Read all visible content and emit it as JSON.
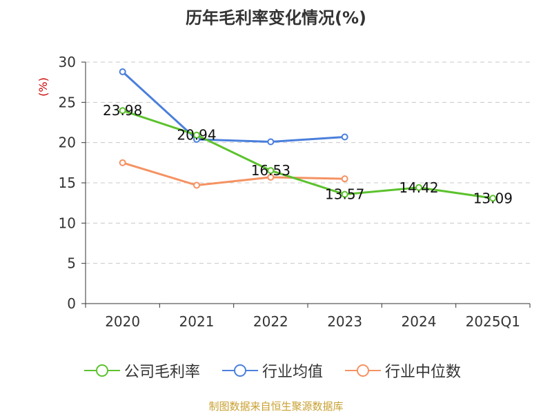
{
  "title": "历年毛利率变化情况(%)",
  "source": "制图数据来自恒生聚源数据库",
  "chart_data": {
    "type": "line",
    "title": "历年毛利率变化情况(%)",
    "ylabel": "(%)",
    "xlabel": "",
    "categories": [
      "2020",
      "2021",
      "2022",
      "2023",
      "2024",
      "2025Q1"
    ],
    "ylim": [
      0,
      30
    ],
    "yticks": [
      0,
      5,
      10,
      15,
      20,
      25,
      30
    ],
    "grid": true,
    "legend_position": "bottom",
    "series": [
      {
        "name": "公司毛利率",
        "color": "#5cc22d",
        "values": [
          23.98,
          20.94,
          16.53,
          13.57,
          14.42,
          13.09
        ],
        "labels": [
          "23.98",
          "20.94",
          "16.53",
          "13.57",
          "14.42",
          "13.09"
        ]
      },
      {
        "name": "行业均值",
        "color": "#4a7fdc",
        "values": [
          28.8,
          20.4,
          20.1,
          20.7,
          null,
          null
        ]
      },
      {
        "name": "行业中位数",
        "color": "#f59262",
        "values": [
          17.5,
          14.7,
          15.7,
          15.5,
          null,
          null
        ]
      }
    ]
  }
}
